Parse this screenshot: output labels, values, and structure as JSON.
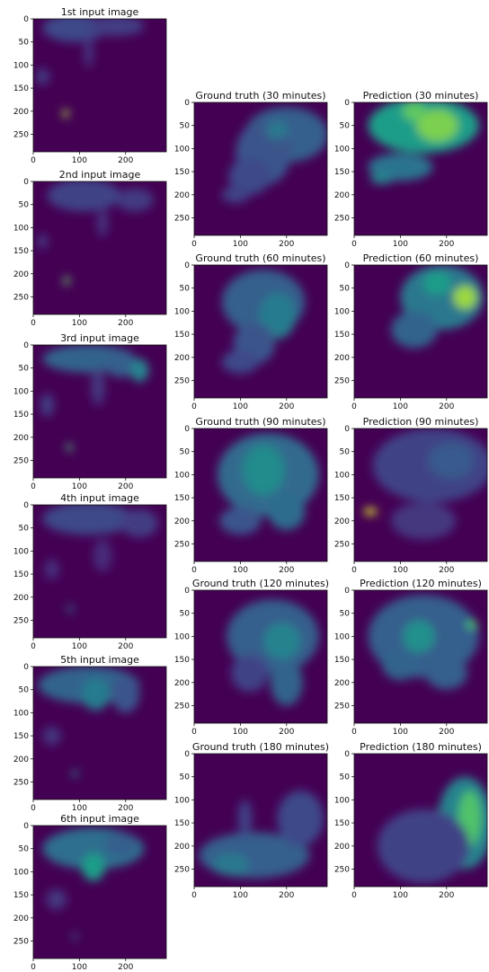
{
  "chart_data": [
    {
      "type": "heatmap",
      "title": "1st input image",
      "xticks": [
        0,
        100,
        200
      ],
      "yticks": [
        0,
        50,
        100,
        150,
        200,
        250
      ],
      "xlim": [
        0,
        288
      ],
      "ylim": [
        288,
        0
      ],
      "colormap": "viridis",
      "colorbar": false,
      "blobs": [
        {
          "x": 90,
          "y": 20,
          "rx": 70,
          "ry": 30,
          "v": 0.22
        },
        {
          "x": 180,
          "y": 15,
          "rx": 60,
          "ry": 22,
          "v": 0.18
        },
        {
          "x": 20,
          "y": 125,
          "rx": 14,
          "ry": 18,
          "v": 0.18
        },
        {
          "x": 70,
          "y": 205,
          "rx": 7,
          "ry": 9,
          "v": 0.85
        },
        {
          "x": 120,
          "y": 70,
          "rx": 10,
          "ry": 35,
          "v": 0.15
        }
      ]
    },
    {
      "type": "heatmap",
      "title": "2nd input image",
      "xticks": [
        0,
        100,
        200
      ],
      "yticks": [
        0,
        50,
        100,
        150,
        200,
        250
      ],
      "xlim": [
        0,
        288
      ],
      "ylim": [
        288,
        0
      ],
      "colormap": "viridis",
      "colorbar": false,
      "blobs": [
        {
          "x": 110,
          "y": 30,
          "rx": 80,
          "ry": 35,
          "v": 0.2
        },
        {
          "x": 220,
          "y": 40,
          "rx": 40,
          "ry": 25,
          "v": 0.17
        },
        {
          "x": 20,
          "y": 130,
          "rx": 12,
          "ry": 16,
          "v": 0.15
        },
        {
          "x": 72,
          "y": 215,
          "rx": 7,
          "ry": 9,
          "v": 0.75
        },
        {
          "x": 150,
          "y": 90,
          "rx": 12,
          "ry": 30,
          "v": 0.14
        }
      ]
    },
    {
      "type": "heatmap",
      "title": "3rd input image",
      "xticks": [
        0,
        100,
        200
      ],
      "yticks": [
        0,
        50,
        100,
        150,
        200,
        250
      ],
      "xlim": [
        0,
        288
      ],
      "ylim": [
        288,
        0
      ],
      "colormap": "viridis",
      "colorbar": false,
      "blobs": [
        {
          "x": 120,
          "y": 30,
          "rx": 100,
          "ry": 30,
          "v": 0.32
        },
        {
          "x": 190,
          "y": 40,
          "rx": 35,
          "ry": 30,
          "v": 0.3
        },
        {
          "x": 230,
          "y": 55,
          "rx": 20,
          "ry": 25,
          "v": 0.45
        },
        {
          "x": 30,
          "y": 130,
          "rx": 15,
          "ry": 25,
          "v": 0.18
        },
        {
          "x": 78,
          "y": 222,
          "rx": 6,
          "ry": 9,
          "v": 0.7
        },
        {
          "x": 140,
          "y": 90,
          "rx": 15,
          "ry": 40,
          "v": 0.16
        }
      ]
    },
    {
      "type": "heatmap",
      "title": "4th input image",
      "xticks": [
        0,
        100,
        200
      ],
      "yticks": [
        0,
        50,
        100,
        150,
        200,
        250
      ],
      "xlim": [
        0,
        288
      ],
      "ylim": [
        288,
        0
      ],
      "colormap": "viridis",
      "colorbar": false,
      "blobs": [
        {
          "x": 120,
          "y": 30,
          "rx": 100,
          "ry": 35,
          "v": 0.22
        },
        {
          "x": 230,
          "y": 40,
          "rx": 40,
          "ry": 30,
          "v": 0.18
        },
        {
          "x": 40,
          "y": 140,
          "rx": 16,
          "ry": 22,
          "v": 0.13
        },
        {
          "x": 80,
          "y": 225,
          "rx": 6,
          "ry": 8,
          "v": 0.4
        },
        {
          "x": 150,
          "y": 110,
          "rx": 20,
          "ry": 35,
          "v": 0.12
        }
      ]
    },
    {
      "type": "heatmap",
      "title": "5th input image",
      "xticks": [
        0,
        100,
        200
      ],
      "yticks": [
        0,
        50,
        100,
        150,
        200,
        250
      ],
      "xlim": [
        0,
        288
      ],
      "ylim": [
        288,
        0
      ],
      "colormap": "viridis",
      "colorbar": false,
      "blobs": [
        {
          "x": 120,
          "y": 40,
          "rx": 110,
          "ry": 40,
          "v": 0.32
        },
        {
          "x": 135,
          "y": 60,
          "rx": 30,
          "ry": 35,
          "v": 0.42
        },
        {
          "x": 200,
          "y": 60,
          "rx": 30,
          "ry": 40,
          "v": 0.26
        },
        {
          "x": 40,
          "y": 150,
          "rx": 20,
          "ry": 20,
          "v": 0.15
        },
        {
          "x": 90,
          "y": 232,
          "rx": 6,
          "ry": 8,
          "v": 0.45
        }
      ]
    },
    {
      "type": "heatmap",
      "title": "6th input image",
      "xticks": [
        0,
        100,
        200
      ],
      "yticks": [
        0,
        50,
        100,
        150,
        200,
        250
      ],
      "xlim": [
        0,
        288
      ],
      "ylim": [
        288,
        0
      ],
      "colormap": "viridis",
      "colorbar": false,
      "blobs": [
        {
          "x": 130,
          "y": 50,
          "rx": 110,
          "ry": 45,
          "v": 0.36
        },
        {
          "x": 130,
          "y": 90,
          "rx": 25,
          "ry": 30,
          "v": 0.55
        },
        {
          "x": 190,
          "y": 40,
          "rx": 35,
          "ry": 25,
          "v": 0.3
        },
        {
          "x": 50,
          "y": 160,
          "rx": 22,
          "ry": 22,
          "v": 0.16
        },
        {
          "x": 90,
          "y": 240,
          "rx": 6,
          "ry": 7,
          "v": 0.3
        }
      ]
    },
    {
      "type": "heatmap",
      "title": "Ground truth (30 minutes)",
      "xticks": [
        0,
        100,
        200
      ],
      "yticks": [
        0,
        50,
        100,
        150,
        200,
        250
      ],
      "xlim": [
        0,
        288
      ],
      "ylim": [
        288,
        0
      ],
      "colormap": "viridis",
      "colorbar": false,
      "blobs": [
        {
          "x": 200,
          "y": 70,
          "rx": 90,
          "ry": 60,
          "v": 0.3
        },
        {
          "x": 150,
          "y": 110,
          "rx": 60,
          "ry": 70,
          "v": 0.26
        },
        {
          "x": 120,
          "y": 160,
          "rx": 45,
          "ry": 40,
          "v": 0.22
        },
        {
          "x": 180,
          "y": 60,
          "rx": 25,
          "ry": 20,
          "v": 0.4
        },
        {
          "x": 90,
          "y": 200,
          "rx": 30,
          "ry": 18,
          "v": 0.2
        }
      ]
    },
    {
      "type": "heatmap",
      "title": "Prediction (30 minutes)",
      "xticks": [
        0,
        100,
        200
      ],
      "yticks": [
        0,
        50,
        100,
        150,
        200,
        250
      ],
      "xlim": [
        0,
        288
      ],
      "ylim": [
        288,
        0
      ],
      "colormap": "viridis",
      "colorbar": false,
      "blobs": [
        {
          "x": 150,
          "y": 50,
          "rx": 120,
          "ry": 60,
          "v": 0.55
        },
        {
          "x": 180,
          "y": 50,
          "rx": 45,
          "ry": 35,
          "v": 0.8
        },
        {
          "x": 130,
          "y": 20,
          "rx": 25,
          "ry": 20,
          "v": 0.75
        },
        {
          "x": 100,
          "y": 140,
          "rx": 70,
          "ry": 30,
          "v": 0.38
        },
        {
          "x": 60,
          "y": 165,
          "rx": 25,
          "ry": 12,
          "v": 0.45
        }
      ]
    },
    {
      "type": "heatmap",
      "title": "Ground truth (60 minutes)",
      "xticks": [
        0,
        100,
        200
      ],
      "yticks": [
        0,
        50,
        100,
        150,
        200,
        250
      ],
      "xlim": [
        0,
        288
      ],
      "ylim": [
        288,
        0
      ],
      "colormap": "viridis",
      "colorbar": false,
      "blobs": [
        {
          "x": 150,
          "y": 80,
          "rx": 90,
          "ry": 70,
          "v": 0.3
        },
        {
          "x": 180,
          "y": 110,
          "rx": 40,
          "ry": 50,
          "v": 0.42
        },
        {
          "x": 130,
          "y": 170,
          "rx": 45,
          "ry": 45,
          "v": 0.26
        },
        {
          "x": 100,
          "y": 210,
          "rx": 40,
          "ry": 25,
          "v": 0.22
        }
      ]
    },
    {
      "type": "heatmap",
      "title": "Prediction (60 minutes)",
      "xticks": [
        0,
        100,
        200
      ],
      "yticks": [
        0,
        50,
        100,
        150,
        200,
        250
      ],
      "xlim": [
        0,
        288
      ],
      "ylim": [
        288,
        0
      ],
      "colormap": "viridis",
      "colorbar": false,
      "blobs": [
        {
          "x": 190,
          "y": 70,
          "rx": 90,
          "ry": 70,
          "v": 0.4
        },
        {
          "x": 240,
          "y": 70,
          "rx": 25,
          "ry": 25,
          "v": 0.85
        },
        {
          "x": 180,
          "y": 40,
          "rx": 30,
          "ry": 25,
          "v": 0.55
        },
        {
          "x": 130,
          "y": 140,
          "rx": 50,
          "ry": 40,
          "v": 0.32
        }
      ]
    },
    {
      "type": "heatmap",
      "title": "Ground truth (90 minutes)",
      "xticks": [
        0,
        100,
        200
      ],
      "yticks": [
        0,
        50,
        100,
        150,
        200,
        250
      ],
      "xlim": [
        0,
        288
      ],
      "ylim": [
        288,
        0
      ],
      "colormap": "viridis",
      "colorbar": false,
      "blobs": [
        {
          "x": 160,
          "y": 100,
          "rx": 110,
          "ry": 90,
          "v": 0.34
        },
        {
          "x": 150,
          "y": 90,
          "rx": 45,
          "ry": 55,
          "v": 0.48
        },
        {
          "x": 200,
          "y": 180,
          "rx": 40,
          "ry": 40,
          "v": 0.35
        },
        {
          "x": 100,
          "y": 200,
          "rx": 45,
          "ry": 30,
          "v": 0.26
        }
      ]
    },
    {
      "type": "heatmap",
      "title": "Prediction (90 minutes)",
      "xticks": [
        0,
        100,
        200
      ],
      "yticks": [
        0,
        50,
        100,
        150,
        200,
        250
      ],
      "xlim": [
        0,
        288
      ],
      "ylim": [
        288,
        0
      ],
      "colormap": "viridis",
      "colorbar": false,
      "blobs": [
        {
          "x": 170,
          "y": 80,
          "rx": 130,
          "ry": 80,
          "v": 0.2
        },
        {
          "x": 210,
          "y": 70,
          "rx": 50,
          "ry": 40,
          "v": 0.28
        },
        {
          "x": 35,
          "y": 180,
          "rx": 14,
          "ry": 8,
          "v": 0.95
        },
        {
          "x": 150,
          "y": 200,
          "rx": 70,
          "ry": 40,
          "v": 0.16
        }
      ]
    },
    {
      "type": "heatmap",
      "title": "Ground truth (120 minutes)",
      "xticks": [
        0,
        100,
        200
      ],
      "yticks": [
        0,
        50,
        100,
        150,
        200,
        250
      ],
      "xlim": [
        0,
        288
      ],
      "ylim": [
        288,
        0
      ],
      "colormap": "viridis",
      "colorbar": false,
      "blobs": [
        {
          "x": 170,
          "y": 100,
          "rx": 100,
          "ry": 80,
          "v": 0.3
        },
        {
          "x": 190,
          "y": 110,
          "rx": 40,
          "ry": 40,
          "v": 0.45
        },
        {
          "x": 200,
          "y": 200,
          "rx": 35,
          "ry": 50,
          "v": 0.32
        },
        {
          "x": 120,
          "y": 180,
          "rx": 40,
          "ry": 40,
          "v": 0.2
        }
      ]
    },
    {
      "type": "heatmap",
      "title": "Prediction (120 minutes)",
      "xticks": [
        0,
        100,
        200
      ],
      "yticks": [
        0,
        50,
        100,
        150,
        200,
        250
      ],
      "xlim": [
        0,
        288
      ],
      "ylim": [
        288,
        0
      ],
      "colormap": "viridis",
      "colorbar": false,
      "blobs": [
        {
          "x": 150,
          "y": 100,
          "rx": 120,
          "ry": 90,
          "v": 0.3
        },
        {
          "x": 140,
          "y": 100,
          "rx": 35,
          "ry": 35,
          "v": 0.5
        },
        {
          "x": 255,
          "y": 75,
          "rx": 12,
          "ry": 10,
          "v": 0.7
        },
        {
          "x": 100,
          "y": 160,
          "rx": 40,
          "ry": 35,
          "v": 0.32
        },
        {
          "x": 200,
          "y": 180,
          "rx": 45,
          "ry": 35,
          "v": 0.3
        }
      ]
    },
    {
      "type": "heatmap",
      "title": "Ground truth (180 minutes)",
      "xticks": [
        0,
        100,
        200
      ],
      "yticks": [
        0,
        50,
        100,
        150,
        200,
        250
      ],
      "xlim": [
        0,
        288
      ],
      "ylim": [
        288,
        0
      ],
      "colormap": "viridis",
      "colorbar": false,
      "blobs": [
        {
          "x": 130,
          "y": 220,
          "rx": 120,
          "ry": 50,
          "v": 0.3
        },
        {
          "x": 80,
          "y": 240,
          "rx": 40,
          "ry": 25,
          "v": 0.4
        },
        {
          "x": 230,
          "y": 140,
          "rx": 50,
          "ry": 60,
          "v": 0.22
        },
        {
          "x": 110,
          "y": 140,
          "rx": 15,
          "ry": 40,
          "v": 0.2
        }
      ]
    },
    {
      "type": "heatmap",
      "title": "Prediction (180 minutes)",
      "xticks": [
        0,
        100,
        200
      ],
      "yticks": [
        0,
        50,
        100,
        150,
        200,
        250
      ],
      "xlim": [
        0,
        288
      ],
      "ylim": [
        288,
        0
      ],
      "colormap": "viridis",
      "colorbar": false,
      "blobs": [
        {
          "x": 240,
          "y": 150,
          "rx": 60,
          "ry": 100,
          "v": 0.45
        },
        {
          "x": 250,
          "y": 140,
          "rx": 25,
          "ry": 60,
          "v": 0.72
        },
        {
          "x": 150,
          "y": 200,
          "rx": 100,
          "ry": 80,
          "v": 0.2
        }
      ]
    }
  ]
}
